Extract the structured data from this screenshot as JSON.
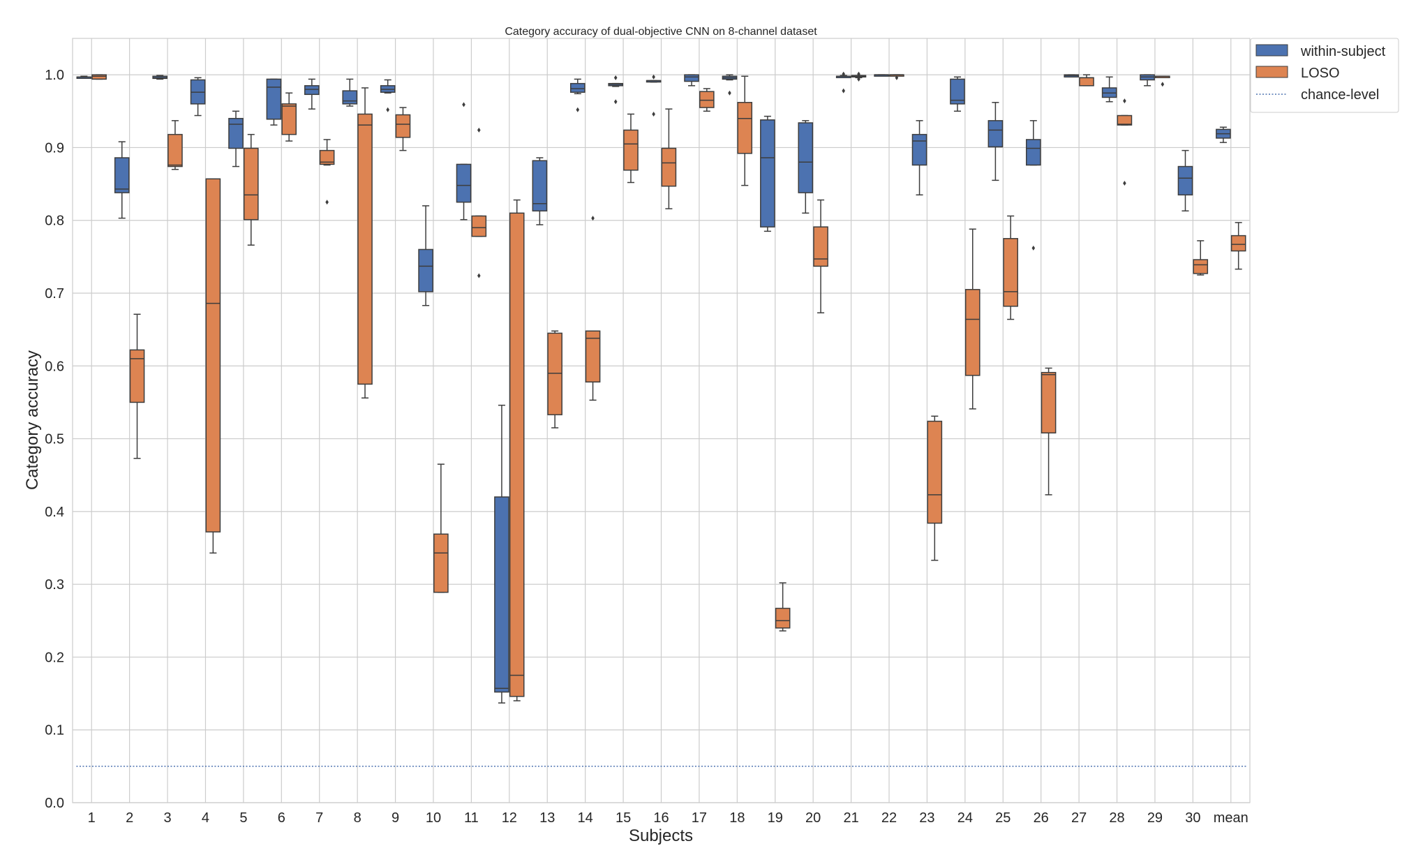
{
  "chart_data": {
    "type": "boxplot",
    "title": "Category accuracy of dual-objective CNN on 8-channel dataset",
    "xlabel": "Subjects",
    "ylabel": "Category accuracy",
    "ylim": [
      0.0,
      1.05
    ],
    "yticks": [
      0.0,
      0.1,
      0.2,
      0.3,
      0.4,
      0.5,
      0.6,
      0.7,
      0.8,
      0.9,
      1.0
    ],
    "ytick_labels": [
      "0.0",
      "0.1",
      "0.2",
      "0.3",
      "0.4",
      "0.5",
      "0.6",
      "0.7",
      "0.8",
      "0.9",
      "1.0"
    ],
    "grid": true,
    "legend_position": "top-right, outside",
    "categories": [
      "1",
      "2",
      "3",
      "4",
      "5",
      "6",
      "7",
      "8",
      "9",
      "10",
      "11",
      "12",
      "13",
      "14",
      "15",
      "16",
      "17",
      "18",
      "19",
      "20",
      "21",
      "22",
      "23",
      "24",
      "25",
      "26",
      "27",
      "28",
      "29",
      "30",
      "mean"
    ],
    "series": [
      {
        "name": "within-subject",
        "color": "#4c72b0",
        "boxes": [
          {
            "wlo": 0.996,
            "q1": 0.996,
            "med": 0.997,
            "q3": 0.997,
            "whi": 0.998,
            "fliers": []
          },
          {
            "wlo": 0.803,
            "q1": 0.838,
            "med": 0.843,
            "q3": 0.886,
            "whi": 0.908,
            "fliers": []
          },
          {
            "wlo": 0.994,
            "q1": 0.995,
            "med": 0.996,
            "q3": 0.998,
            "whi": 0.999,
            "fliers": []
          },
          {
            "wlo": 0.944,
            "q1": 0.96,
            "med": 0.976,
            "q3": 0.993,
            "whi": 0.996,
            "fliers": []
          },
          {
            "wlo": 0.874,
            "q1": 0.899,
            "med": 0.932,
            "q3": 0.94,
            "whi": 0.95,
            "fliers": []
          },
          {
            "wlo": 0.931,
            "q1": 0.939,
            "med": 0.983,
            "q3": 0.994,
            "whi": 0.994,
            "fliers": []
          },
          {
            "wlo": 0.953,
            "q1": 0.973,
            "med": 0.98,
            "q3": 0.985,
            "whi": 0.994,
            "fliers": []
          },
          {
            "wlo": 0.957,
            "q1": 0.96,
            "med": 0.964,
            "q3": 0.978,
            "whi": 0.994,
            "fliers": []
          },
          {
            "wlo": 0.975,
            "q1": 0.976,
            "med": 0.98,
            "q3": 0.985,
            "whi": 0.993,
            "fliers": [
              0.952
            ]
          },
          {
            "wlo": 0.683,
            "q1": 0.702,
            "med": 0.737,
            "q3": 0.76,
            "whi": 0.82,
            "fliers": []
          },
          {
            "wlo": 0.801,
            "q1": 0.825,
            "med": 0.848,
            "q3": 0.877,
            "whi": 0.877,
            "fliers": [
              0.959
            ]
          },
          {
            "wlo": 0.137,
            "q1": 0.152,
            "med": 0.157,
            "q3": 0.42,
            "whi": 0.546,
            "fliers": []
          },
          {
            "wlo": 0.794,
            "q1": 0.813,
            "med": 0.823,
            "q3": 0.882,
            "whi": 0.886,
            "fliers": []
          },
          {
            "wlo": 0.974,
            "q1": 0.976,
            "med": 0.981,
            "q3": 0.988,
            "whi": 0.994,
            "fliers": [
              0.952
            ]
          },
          {
            "wlo": 0.984,
            "q1": 0.985,
            "med": 0.987,
            "q3": 0.988,
            "whi": 0.988,
            "fliers": [
              0.996,
              0.963
            ]
          },
          {
            "wlo": 0.99,
            "q1": 0.991,
            "med": 0.992,
            "q3": 0.992,
            "whi": 0.992,
            "fliers": [
              0.997,
              0.946
            ]
          },
          {
            "wlo": 0.985,
            "q1": 0.991,
            "med": 0.997,
            "q3": 1.0,
            "whi": 1.0,
            "fliers": []
          },
          {
            "wlo": 0.993,
            "q1": 0.994,
            "med": 0.996,
            "q3": 0.998,
            "whi": 1.0,
            "fliers": [
              0.975
            ]
          },
          {
            "wlo": 0.785,
            "q1": 0.791,
            "med": 0.886,
            "q3": 0.938,
            "whi": 0.943,
            "fliers": []
          },
          {
            "wlo": 0.81,
            "q1": 0.838,
            "med": 0.88,
            "q3": 0.934,
            "whi": 0.937,
            "fliers": []
          },
          {
            "wlo": 0.997,
            "q1": 0.997,
            "med": 0.998,
            "q3": 0.998,
            "whi": 0.999,
            "fliers": [
              1.001,
              0.978
            ]
          },
          {
            "wlo": 0.999,
            "q1": 0.999,
            "med": 1.0,
            "q3": 1.0,
            "whi": 1.0,
            "fliers": []
          },
          {
            "wlo": 0.835,
            "q1": 0.876,
            "med": 0.909,
            "q3": 0.918,
            "whi": 0.937,
            "fliers": []
          },
          {
            "wlo": 0.95,
            "q1": 0.96,
            "med": 0.965,
            "q3": 0.994,
            "whi": 0.997,
            "fliers": []
          },
          {
            "wlo": 0.855,
            "q1": 0.901,
            "med": 0.924,
            "q3": 0.937,
            "whi": 0.962,
            "fliers": []
          },
          {
            "wlo": 0.876,
            "q1": 0.876,
            "med": 0.899,
            "q3": 0.911,
            "whi": 0.937,
            "fliers": [
              0.762
            ]
          },
          {
            "wlo": 0.997,
            "q1": 0.997,
            "med": 0.999,
            "q3": 1.0,
            "whi": 1.0,
            "fliers": []
          },
          {
            "wlo": 0.963,
            "q1": 0.969,
            "med": 0.975,
            "q3": 0.982,
            "whi": 0.997,
            "fliers": []
          },
          {
            "wlo": 0.985,
            "q1": 0.993,
            "med": 0.997,
            "q3": 1.0,
            "whi": 1.0,
            "fliers": []
          },
          {
            "wlo": 0.813,
            "q1": 0.835,
            "med": 0.858,
            "q3": 0.874,
            "whi": 0.896,
            "fliers": []
          },
          {
            "wlo": 0.907,
            "q1": 0.913,
            "med": 0.919,
            "q3": 0.925,
            "whi": 0.928,
            "fliers": []
          }
        ]
      },
      {
        "name": "LOSO",
        "color": "#dd8452",
        "boxes": [
          {
            "wlo": 0.994,
            "q1": 0.994,
            "med": 0.998,
            "q3": 1.0,
            "whi": 1.0,
            "fliers": []
          },
          {
            "wlo": 0.473,
            "q1": 0.55,
            "med": 0.61,
            "q3": 0.622,
            "whi": 0.671,
            "fliers": []
          },
          {
            "wlo": 0.87,
            "q1": 0.874,
            "med": 0.876,
            "q3": 0.918,
            "whi": 0.937,
            "fliers": []
          },
          {
            "wlo": 0.343,
            "q1": 0.372,
            "med": 0.686,
            "q3": 0.857,
            "whi": 0.857,
            "fliers": []
          },
          {
            "wlo": 0.766,
            "q1": 0.801,
            "med": 0.835,
            "q3": 0.899,
            "whi": 0.918,
            "fliers": []
          },
          {
            "wlo": 0.909,
            "q1": 0.918,
            "med": 0.957,
            "q3": 0.96,
            "whi": 0.975,
            "fliers": []
          },
          {
            "wlo": 0.876,
            "q1": 0.877,
            "med": 0.88,
            "q3": 0.896,
            "whi": 0.911,
            "fliers": [
              0.825
            ]
          },
          {
            "wlo": 0.556,
            "q1": 0.575,
            "med": 0.931,
            "q3": 0.946,
            "whi": 0.982,
            "fliers": []
          },
          {
            "wlo": 0.896,
            "q1": 0.914,
            "med": 0.932,
            "q3": 0.945,
            "whi": 0.955,
            "fliers": []
          },
          {
            "wlo": 0.289,
            "q1": 0.289,
            "med": 0.343,
            "q3": 0.369,
            "whi": 0.465,
            "fliers": []
          },
          {
            "wlo": 0.778,
            "q1": 0.778,
            "med": 0.79,
            "q3": 0.806,
            "whi": 0.806,
            "fliers": [
              0.924,
              0.724
            ]
          },
          {
            "wlo": 0.14,
            "q1": 0.146,
            "med": 0.175,
            "q3": 0.81,
            "whi": 0.828,
            "fliers": []
          },
          {
            "wlo": 0.515,
            "q1": 0.533,
            "med": 0.59,
            "q3": 0.645,
            "whi": 0.648,
            "fliers": []
          },
          {
            "wlo": 0.553,
            "q1": 0.578,
            "med": 0.638,
            "q3": 0.648,
            "whi": 0.648,
            "fliers": [
              0.803
            ]
          },
          {
            "wlo": 0.852,
            "q1": 0.869,
            "med": 0.905,
            "q3": 0.924,
            "whi": 0.946,
            "fliers": []
          },
          {
            "wlo": 0.816,
            "q1": 0.847,
            "med": 0.879,
            "q3": 0.899,
            "whi": 0.953,
            "fliers": []
          },
          {
            "wlo": 0.95,
            "q1": 0.955,
            "med": 0.965,
            "q3": 0.977,
            "whi": 0.981,
            "fliers": []
          },
          {
            "wlo": 0.848,
            "q1": 0.892,
            "med": 0.94,
            "q3": 0.962,
            "whi": 0.998,
            "fliers": []
          },
          {
            "wlo": 0.236,
            "q1": 0.24,
            "med": 0.25,
            "q3": 0.267,
            "whi": 0.302,
            "fliers": []
          },
          {
            "wlo": 0.673,
            "q1": 0.737,
            "med": 0.747,
            "q3": 0.791,
            "whi": 0.828,
            "fliers": []
          },
          {
            "wlo": 0.996,
            "q1": 0.997,
            "med": 0.998,
            "q3": 0.999,
            "whi": 0.999,
            "fliers": [
              1.001,
              0.994
            ]
          },
          {
            "wlo": 0.999,
            "q1": 0.999,
            "med": 1.0,
            "q3": 1.0,
            "whi": 1.0,
            "fliers": [
              0.996
            ]
          },
          {
            "wlo": 0.333,
            "q1": 0.384,
            "med": 0.423,
            "q3": 0.524,
            "whi": 0.531,
            "fliers": []
          },
          {
            "wlo": 0.541,
            "q1": 0.587,
            "med": 0.664,
            "q3": 0.705,
            "whi": 0.788,
            "fliers": []
          },
          {
            "wlo": 0.664,
            "q1": 0.682,
            "med": 0.702,
            "q3": 0.775,
            "whi": 0.806,
            "fliers": []
          },
          {
            "wlo": 0.423,
            "q1": 0.508,
            "med": 0.588,
            "q3": 0.591,
            "whi": 0.597,
            "fliers": []
          },
          {
            "wlo": 0.985,
            "q1": 0.985,
            "med": 0.996,
            "q3": 0.996,
            "whi": 1.0,
            "fliers": []
          },
          {
            "wlo": 0.931,
            "q1": 0.931,
            "med": 0.932,
            "q3": 0.944,
            "whi": 0.944,
            "fliers": [
              0.964,
              0.851
            ]
          },
          {
            "wlo": 0.997,
            "q1": 0.997,
            "med": 0.998,
            "q3": 0.998,
            "whi": 0.998,
            "fliers": [
              0.987
            ]
          },
          {
            "wlo": 0.725,
            "q1": 0.727,
            "med": 0.739,
            "q3": 0.746,
            "whi": 0.772,
            "fliers": []
          },
          {
            "wlo": 0.733,
            "q1": 0.758,
            "med": 0.767,
            "q3": 0.779,
            "whi": 0.797,
            "fliers": []
          }
        ]
      },
      {
        "name": "chance-level",
        "color": "#4c72b0",
        "style": "dotted",
        "value": 0.05
      }
    ]
  }
}
